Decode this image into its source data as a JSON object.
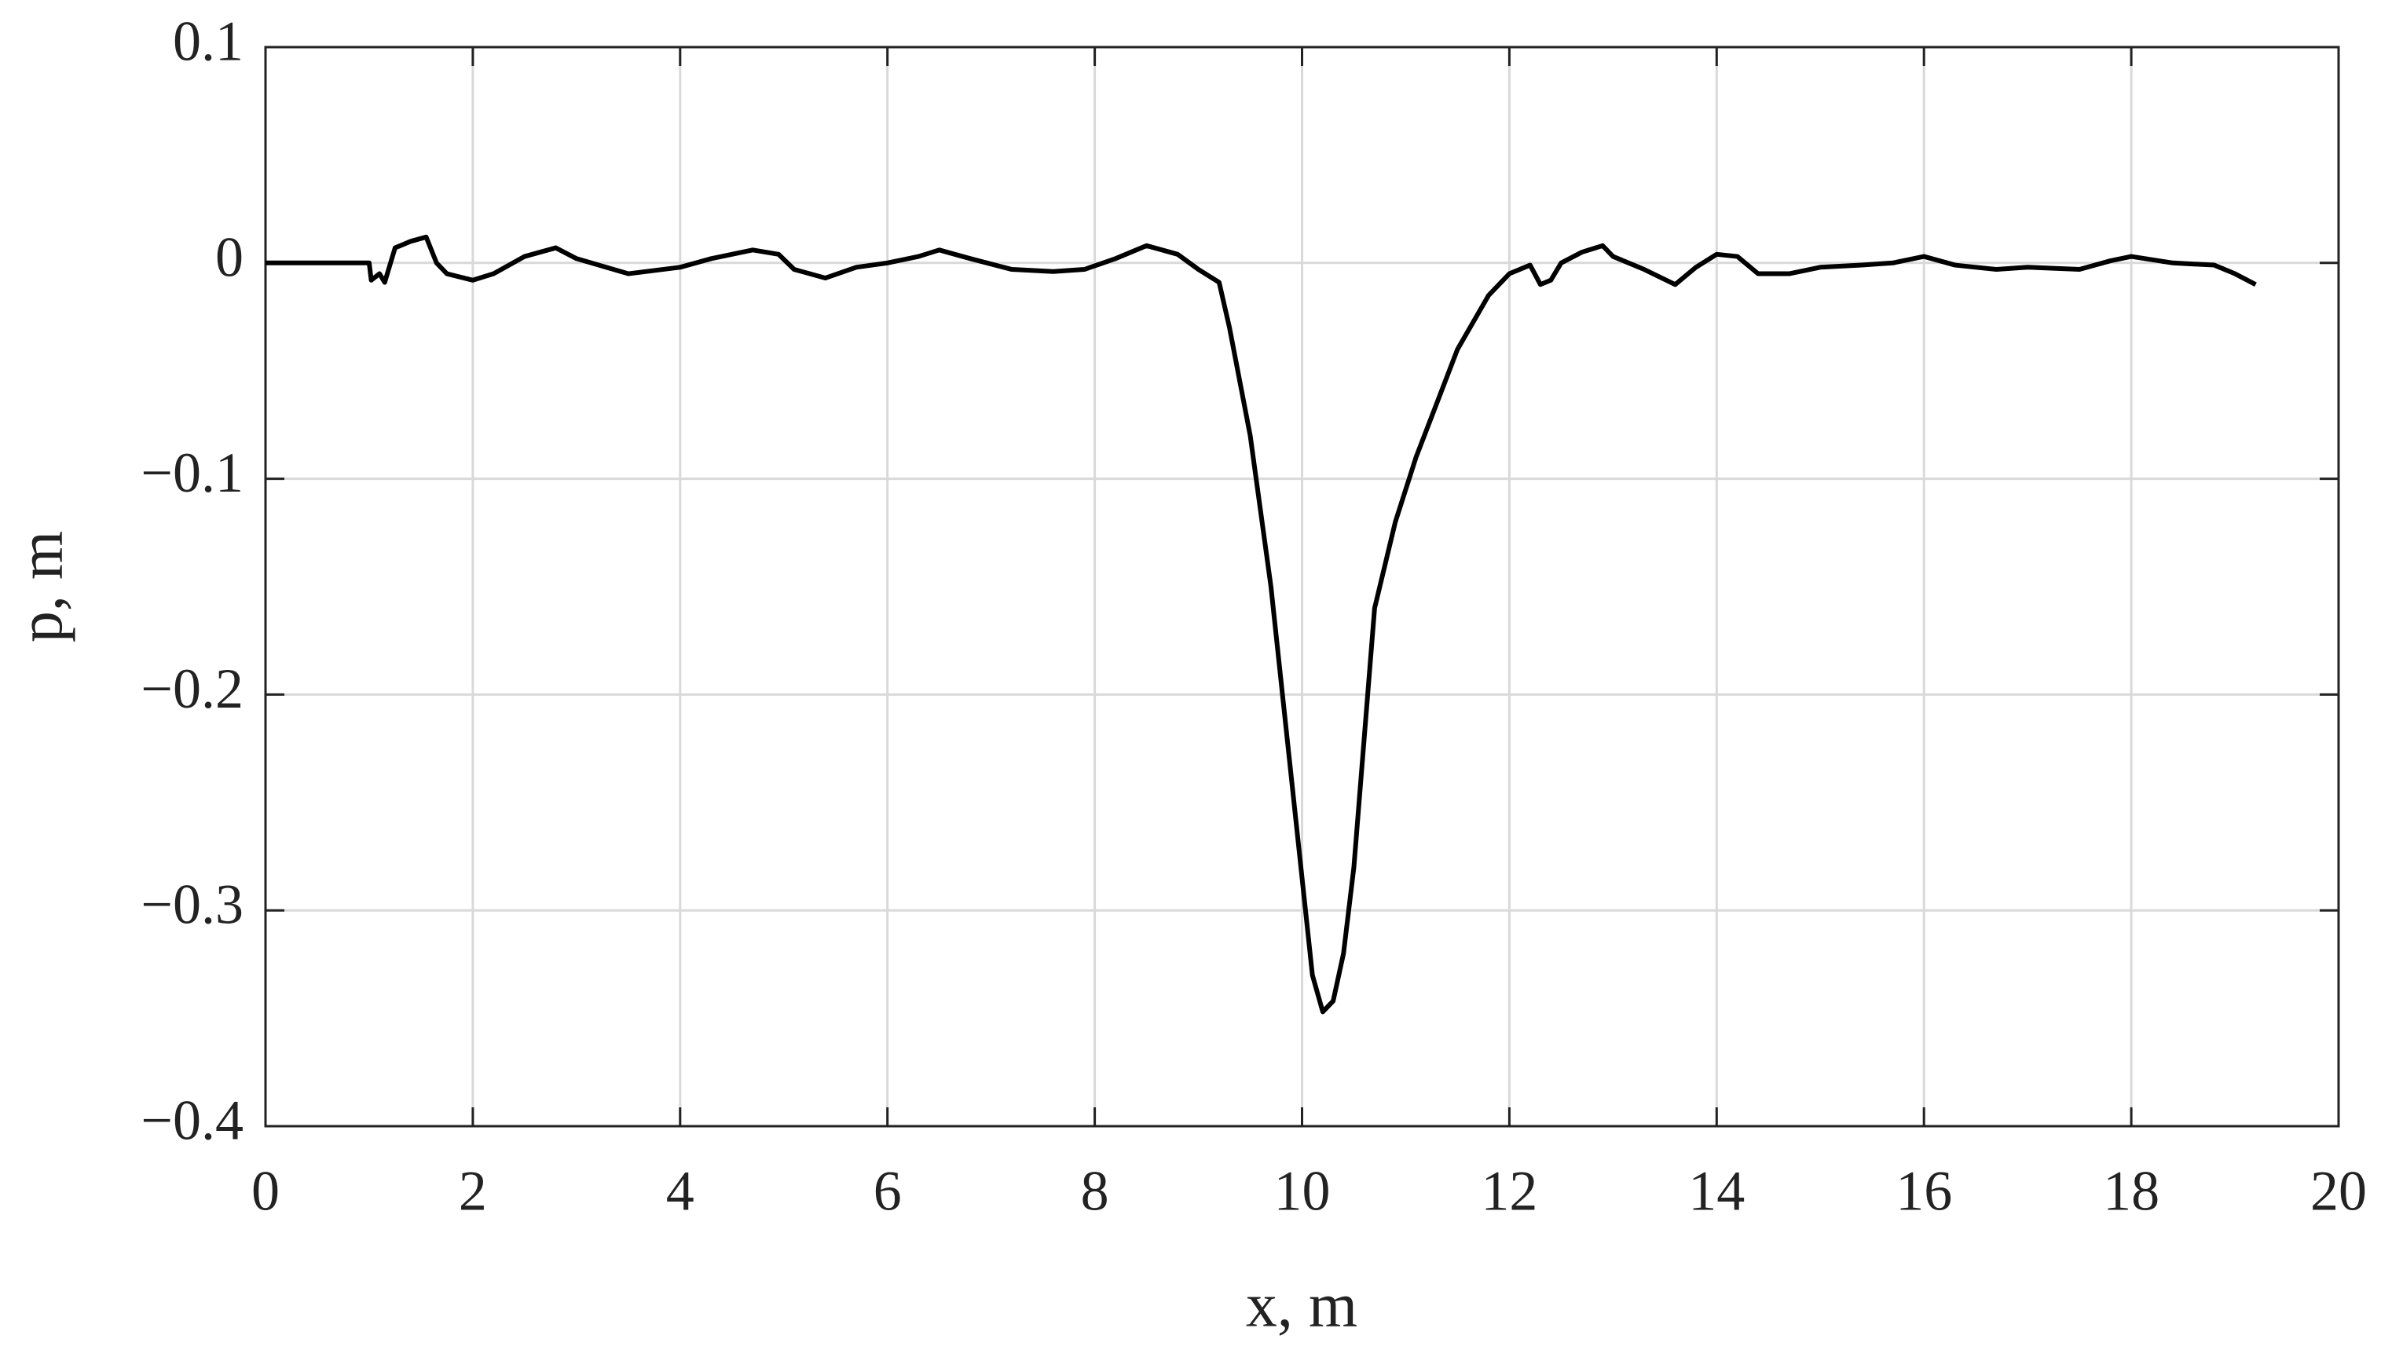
{
  "chart_data": {
    "type": "line",
    "xlabel": "x, m",
    "ylabel": "p, m",
    "xlim": [
      0,
      20
    ],
    "xticks": [
      0,
      2,
      4,
      6,
      8,
      10,
      12,
      14,
      16,
      18,
      20
    ],
    "ylim": [
      -0.4,
      0.1
    ],
    "yticks": [
      {
        "value": -0.4,
        "label": "−0.4"
      },
      {
        "value": -0.3,
        "label": "−0.3"
      },
      {
        "value": -0.2,
        "label": "−0.2"
      },
      {
        "value": -0.1,
        "label": "−0.1"
      },
      0,
      0.1
    ],
    "grid": true,
    "series": [
      {
        "color": "#000000",
        "x": [
          0,
          1.0,
          1.02,
          1.1,
          1.15,
          1.25,
          1.4,
          1.55,
          1.65,
          1.75,
          2.0,
          2.2,
          2.5,
          2.8,
          3.0,
          3.5,
          4.0,
          4.3,
          4.7,
          4.95,
          5.1,
          5.4,
          5.7,
          6.0,
          6.3,
          6.5,
          6.8,
          7.2,
          7.6,
          7.9,
          8.2,
          8.5,
          8.8,
          9.0,
          9.2,
          9.3,
          9.5,
          9.7,
          9.9,
          10.1,
          10.2,
          10.3,
          10.4,
          10.5,
          10.6,
          10.7,
          10.9,
          11.1,
          11.3,
          11.5,
          11.8,
          12.0,
          12.2,
          12.3,
          12.4,
          12.5,
          12.7,
          12.9,
          13.0,
          13.3,
          13.6,
          13.8,
          14.0,
          14.2,
          14.4,
          14.7,
          15.0,
          15.4,
          15.7,
          16.0,
          16.3,
          16.7,
          17.0,
          17.5,
          17.8,
          18.0,
          18.4,
          18.8,
          19.0,
          19.2
        ],
        "values": [
          0,
          0,
          -0.008,
          -0.005,
          -0.009,
          0.007,
          0.01,
          0.012,
          0.0,
          -0.005,
          -0.008,
          -0.005,
          0.003,
          0.007,
          0.002,
          -0.005,
          -0.002,
          0.002,
          0.006,
          0.004,
          -0.003,
          -0.007,
          -0.002,
          0.0,
          0.003,
          0.006,
          0.002,
          -0.003,
          -0.004,
          -0.003,
          0.002,
          0.008,
          0.004,
          -0.003,
          -0.009,
          -0.03,
          -0.08,
          -0.15,
          -0.24,
          -0.33,
          -0.347,
          -0.342,
          -0.32,
          -0.28,
          -0.22,
          -0.16,
          -0.12,
          -0.09,
          -0.065,
          -0.04,
          -0.015,
          -0.005,
          -0.001,
          -0.01,
          -0.008,
          0.0,
          0.005,
          0.008,
          0.003,
          -0.003,
          -0.01,
          -0.002,
          0.004,
          0.003,
          -0.005,
          -0.005,
          -0.002,
          -0.001,
          0.0,
          0.003,
          -0.001,
          -0.003,
          -0.002,
          -0.003,
          0.001,
          0.003,
          0.0,
          -0.001,
          -0.005,
          -0.01
        ]
      }
    ]
  }
}
